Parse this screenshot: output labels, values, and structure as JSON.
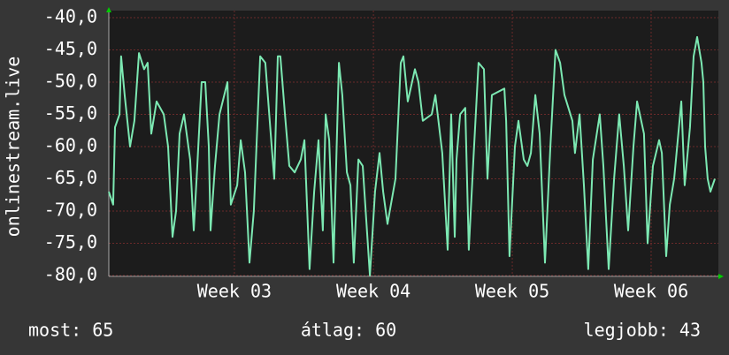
{
  "chart_data": {
    "type": "line",
    "ylabel": "onlinestream.live",
    "x": [
      0,
      0.22,
      0.31,
      0.54,
      0.62,
      0.8,
      1.07,
      1.29,
      1.52,
      1.78,
      1.96,
      2.14,
      2.41,
      2.77,
      2.99,
      3.21,
      3.39,
      3.57,
      3.79,
      4.1,
      4.28,
      4.46,
      4.68,
      4.86,
      5.04,
      5.13,
      5.35,
      5.58,
      5.98,
      6.15,
      6.47,
      6.65,
      6.87,
      7.09,
      7.31,
      7.63,
      7.89,
      8.21,
      8.34,
      8.52,
      8.65,
      8.88,
      9.1,
      9.37,
      9.68,
      9.86,
      10.12,
      10.35,
      10.57,
      10.79,
      10.93,
      11.11,
      11.33,
      11.6,
      11.77,
      12.0,
      12.18,
      12.35,
      12.58,
      12.8,
      13.16,
      13.42,
      13.65,
      13.83,
      14.05,
      14.45,
      14.72,
      14.85,
      15.07,
      15.43,
      15.61,
      15.83,
      16.28,
      16.46,
      16.81,
      17.08,
      17.26,
      17.44,
      17.53,
      17.71,
      17.97,
      18.15,
      18.38,
      18.64,
      18.91,
      19.09,
      19.31,
      19.94,
      20.03,
      20.2,
      20.47,
      20.65,
      20.92,
      21.1,
      21.28,
      21.5,
      21.72,
      21.99,
      22.26,
      22.52,
      22.75,
      22.97,
      23.37,
      23.5,
      23.73,
      23.95,
      24.17,
      24.4,
      24.75,
      24.93,
      25.2,
      25.47,
      25.73,
      25.96,
      26.18,
      26.45,
      26.63,
      26.98,
      27.16,
      27.43,
      27.74,
      27.88,
      28.1,
      28.28,
      28.5,
      28.86,
      29.03,
      29.3,
      29.48,
      29.66,
      29.88,
      29.97,
      30.06,
      30.19,
      30.33,
      30.55
    ],
    "values": [
      -67,
      -69,
      -57,
      -55,
      -46,
      -52,
      -60,
      -56,
      -45.5,
      -48,
      -47,
      -58,
      -53,
      -55,
      -60,
      -74,
      -70,
      -58,
      -55,
      -62,
      -73,
      -63,
      -50,
      -50,
      -60,
      -73,
      -63,
      -55,
      -50,
      -69,
      -66,
      -59,
      -64,
      -78,
      -70,
      -46,
      -47,
      -60,
      -65,
      -46,
      -46,
      -55,
      -63,
      -64,
      -62,
      -59,
      -79,
      -67,
      -59,
      -73,
      -55,
      -59,
      -78,
      -47,
      -52,
      -64,
      -66,
      -78,
      -62,
      -63,
      -80,
      -67,
      -61,
      -67,
      -72,
      -65,
      -47,
      -46,
      -53,
      -48,
      -50,
      -56,
      -55,
      -52,
      -61,
      -76,
      -55,
      -74,
      -62,
      -55,
      -54,
      -76,
      -62,
      -47,
      -48,
      -65,
      -52,
      -51,
      -56,
      -77,
      -60,
      -56,
      -62,
      -63,
      -61,
      -52,
      -58,
      -78,
      -60,
      -45,
      -47,
      -52,
      -56,
      -61,
      -55,
      -66,
      -79,
      -62,
      -55,
      -63,
      -79,
      -65,
      -55,
      -63,
      -73,
      -60,
      -53,
      -58,
      -75,
      -63,
      -59,
      -61,
      -77,
      -69,
      -65,
      -53,
      -66,
      -57,
      -46,
      -43,
      -47,
      -50,
      -60,
      -65,
      -67,
      -65
    ],
    "color": "#7ce8b2",
    "xlim": [
      0,
      30.73
    ],
    "xticks": [
      {
        "value": 6.33,
        "label": "Week 03"
      },
      {
        "value": 13.34,
        "label": "Week 04"
      },
      {
        "value": 20.34,
        "label": "Week 05"
      },
      {
        "value": 27.34,
        "label": "Week 06"
      }
    ],
    "ylim": [
      -80,
      -40
    ],
    "yticks": [
      {
        "value": -40,
        "label": "-40,0"
      },
      {
        "value": -45,
        "label": "-45,0"
      },
      {
        "value": -50,
        "label": "-50,0"
      },
      {
        "value": -55,
        "label": "-55,0"
      },
      {
        "value": -60,
        "label": "-60,0"
      },
      {
        "value": -65,
        "label": "-65,0"
      },
      {
        "value": -70,
        "label": "-70,0"
      },
      {
        "value": -75,
        "label": "-75,0"
      },
      {
        "value": -80,
        "label": "-80,0"
      }
    ],
    "grid": true,
    "footer": [
      "most: 65",
      "átlag: 60",
      "legjobb: 43"
    ]
  }
}
